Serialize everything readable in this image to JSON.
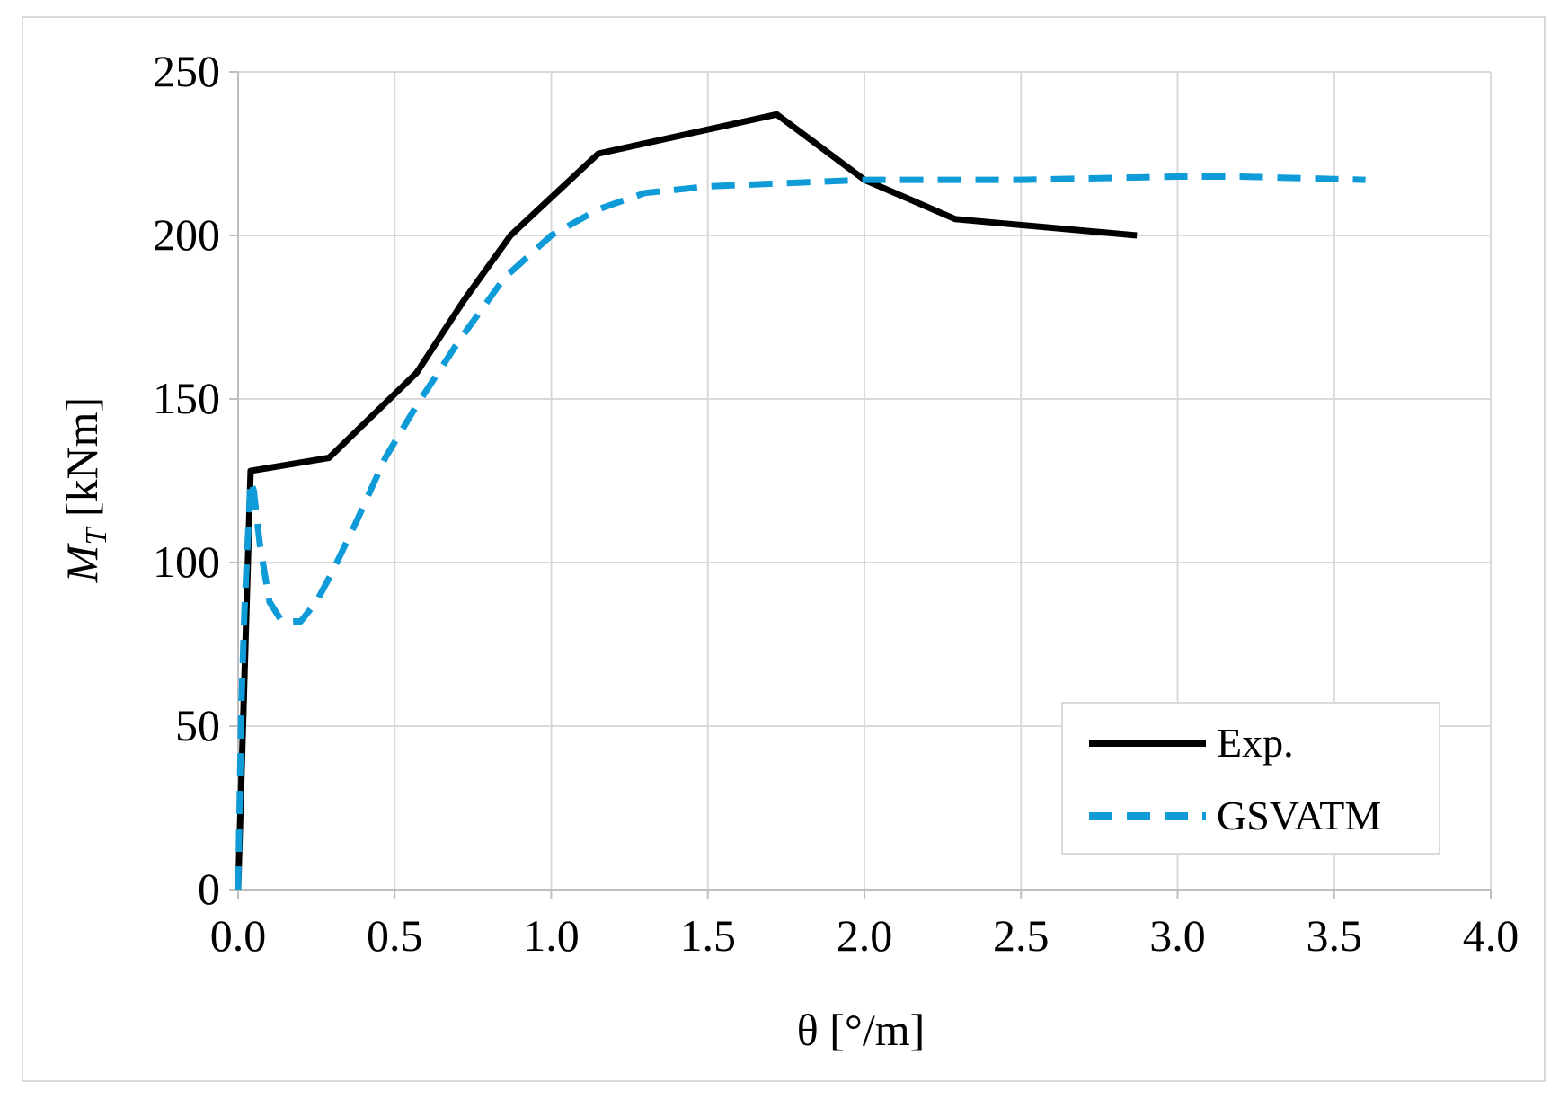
{
  "chart_data": {
    "type": "line",
    "title": "",
    "xlabel": "θ [°/m]",
    "ylabel_main": "M",
    "ylabel_sub": "T",
    "ylabel_unit": " [kNm]",
    "xlim": [
      0,
      4
    ],
    "ylim": [
      0,
      250
    ],
    "xticks": [
      0,
      0.5,
      1,
      1.5,
      2,
      2.5,
      3,
      3.5,
      4
    ],
    "xtick_labels": [
      "0.0",
      "0.5",
      "1.0",
      "1.5",
      "2.0",
      "2.5",
      "3.0",
      "3.5",
      "4.0"
    ],
    "yticks": [
      0,
      50,
      100,
      150,
      200,
      250
    ],
    "ytick_labels": [
      "0",
      "50",
      "100",
      "150",
      "200",
      "250"
    ],
    "grid": true,
    "legend_position": "bottom-right",
    "series": [
      {
        "name": "Exp.",
        "color": "#000000",
        "dash": "solid",
        "x": [
          0.0,
          0.04,
          0.29,
          0.57,
          0.72,
          0.87,
          1.15,
          1.72,
          2.0,
          2.29,
          2.87
        ],
        "y": [
          0,
          128,
          132,
          158,
          180,
          200,
          225,
          237,
          217,
          205,
          200
        ]
      },
      {
        "name": "GSVATM",
        "color": "#0f9bd7",
        "dash": "dashed",
        "x": [
          0.0,
          0.01,
          0.02,
          0.04,
          0.05,
          0.07,
          0.1,
          0.14,
          0.2,
          0.25,
          0.3,
          0.38,
          0.47,
          0.57,
          0.7,
          0.85,
          1.0,
          1.15,
          1.3,
          1.5,
          1.75,
          2.0,
          2.5,
          3.0,
          3.2,
          3.6
        ],
        "y": [
          0,
          55,
          85,
          125,
          122,
          105,
          88,
          82,
          82,
          88,
          97,
          113,
          132,
          148,
          167,
          187,
          200,
          208,
          213,
          215,
          216,
          217,
          217,
          218,
          218,
          217
        ]
      }
    ]
  }
}
